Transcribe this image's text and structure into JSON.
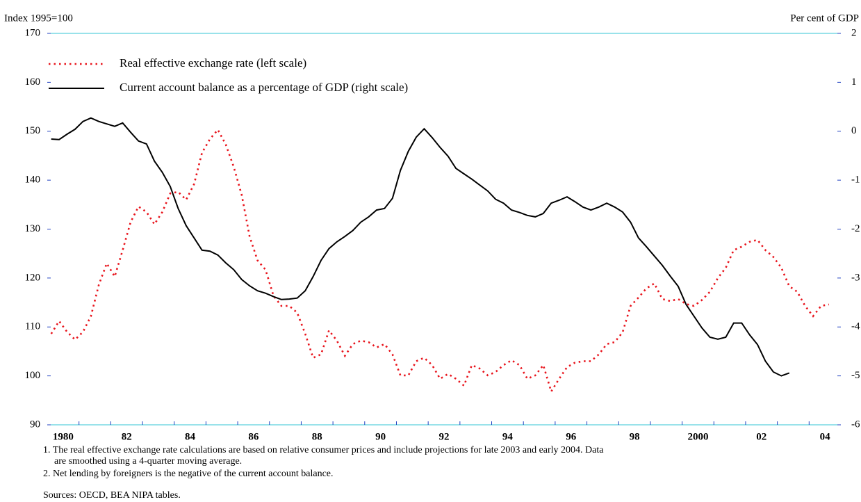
{
  "chart_data": {
    "type": "line",
    "ylabel": "Index 1995=100",
    "y2label": "Per cent of GDP",
    "x": [
      1980.125,
      1980.375,
      1980.625,
      1980.875,
      1981.125,
      1981.375,
      1981.625,
      1981.875,
      1982.125,
      1982.375,
      1982.625,
      1982.875,
      1983.125,
      1983.375,
      1983.625,
      1983.875,
      1984.125,
      1984.375,
      1984.625,
      1984.875,
      1985.125,
      1985.375,
      1985.625,
      1985.875,
      1986.125,
      1986.375,
      1986.625,
      1986.875,
      1987.125,
      1987.375,
      1987.625,
      1987.875,
      1988.125,
      1988.375,
      1988.625,
      1988.875,
      1989.125,
      1989.375,
      1989.625,
      1989.875,
      1990.125,
      1990.375,
      1990.625,
      1990.875,
      1991.125,
      1991.375,
      1991.625,
      1991.875,
      1992.125,
      1992.375,
      1992.625,
      1992.875,
      1993.125,
      1993.375,
      1993.625,
      1993.875,
      1994.125,
      1994.375,
      1994.625,
      1994.875,
      1995.125,
      1995.375,
      1995.625,
      1995.875,
      1996.125,
      1996.375,
      1996.625,
      1996.875,
      1997.125,
      1997.375,
      1997.625,
      1997.875,
      1998.125,
      1998.375,
      1998.625,
      1998.875,
      1999.125,
      1999.375,
      1999.625,
      1999.875,
      2000.125,
      2000.375,
      2000.625,
      2000.875,
      2001.125,
      2001.375,
      2001.625,
      2001.875,
      2002.125,
      2002.375,
      2002.625,
      2002.875,
      2003.125,
      2003.375,
      2003.625,
      2003.875,
      2004.125,
      2004.375,
      2004.625
    ],
    "series": [
      {
        "name": "Real effective exchange rate (left scale)",
        "color": "#e8141c",
        "style": "dotted",
        "values": [
          108.6,
          111.2,
          109,
          107.4,
          109,
          112.2,
          118.6,
          123,
          120.3,
          125.7,
          131.4,
          134.6,
          133.5,
          131,
          133.5,
          137.3,
          137.6,
          136,
          139.2,
          145.6,
          148.4,
          150.3,
          147.3,
          142.7,
          137,
          128.5,
          123.6,
          121.7,
          116.4,
          114.3,
          114.3,
          112.9,
          108.6,
          103.7,
          104.4,
          109.3,
          107.2,
          104.1,
          106.5,
          107.2,
          106.9,
          105.8,
          106.5,
          104.4,
          100.1,
          100.1,
          103,
          103.7,
          102.2,
          99.4,
          100.4,
          99.4,
          98,
          102.2,
          101.5,
          100.1,
          100.8,
          102.2,
          103.2,
          102.2,
          99.4,
          100.1,
          102.2,
          96.8,
          99.4,
          101.8,
          102.7,
          103,
          103,
          104.4,
          106.5,
          106.9,
          108.9,
          114.3,
          116,
          117.9,
          118.9,
          115.7,
          115.3,
          115.7,
          114.7,
          114.3,
          115.5,
          117.2,
          120,
          122.1,
          125.7,
          126.4,
          127.4,
          127.8,
          125.7,
          124.3,
          122.1,
          118.3,
          117.2,
          114.3,
          112.2,
          114.3,
          114.6
        ]
      },
      {
        "name": "Current account balance as a percentage of GDP (right scale)",
        "color": "#000000",
        "style": "solid",
        "axis": "y2",
        "values": [
          -0.16,
          -0.17,
          -0.06,
          0.04,
          0.2,
          0.27,
          0.2,
          0.15,
          0.1,
          0.17,
          -0.02,
          -0.2,
          -0.26,
          -0.61,
          -0.84,
          -1.13,
          -1.58,
          -1.93,
          -2.18,
          -2.43,
          -2.45,
          -2.53,
          -2.69,
          -2.83,
          -3.03,
          -3.16,
          -3.26,
          -3.31,
          -3.38,
          -3.44,
          -3.43,
          -3.41,
          -3.26,
          -2.97,
          -2.64,
          -2.4,
          -2.26,
          -2.15,
          -2.03,
          -1.86,
          -1.75,
          -1.61,
          -1.58,
          -1.37,
          -0.8,
          -0.41,
          -0.12,
          0.05,
          -0.13,
          -0.33,
          -0.51,
          -0.76,
          -0.87,
          -0.98,
          -1.1,
          -1.22,
          -1.39,
          -1.47,
          -1.61,
          -1.66,
          -1.72,
          -1.75,
          -1.68,
          -1.47,
          -1.41,
          -1.34,
          -1.44,
          -1.55,
          -1.61,
          -1.55,
          -1.47,
          -1.55,
          -1.65,
          -1.86,
          -2.18,
          -2.36,
          -2.55,
          -2.74,
          -2.96,
          -3.17,
          -3.54,
          -3.78,
          -4.02,
          -4.21,
          -4.25,
          -4.21,
          -3.92,
          -3.92,
          -4.16,
          -4.36,
          -4.7,
          -4.92,
          -5.0,
          -4.94,
          null,
          null,
          null,
          null,
          null
        ]
      }
    ],
    "xlim": [
      1980,
      2005
    ],
    "xticks": [
      {
        "value": 1980.5,
        "label": "1980"
      },
      {
        "value": 1982.5,
        "label": "82"
      },
      {
        "value": 1984.5,
        "label": "84"
      },
      {
        "value": 1986.5,
        "label": "86"
      },
      {
        "value": 1988.5,
        "label": "88"
      },
      {
        "value": 1990.5,
        "label": "90"
      },
      {
        "value": 1992.5,
        "label": "92"
      },
      {
        "value": 1994.5,
        "label": "94"
      },
      {
        "value": 1996.5,
        "label": "96"
      },
      {
        "value": 1998.5,
        "label": "98"
      },
      {
        "value": 2000.5,
        "label": "2000"
      },
      {
        "value": 2002.5,
        "label": "02"
      },
      {
        "value": 2004.5,
        "label": "04"
      }
    ],
    "xminor_ticks": [
      1981,
      1982,
      1983,
      1984,
      1985,
      1986,
      1987,
      1988,
      1989,
      1990,
      1991,
      1992,
      1993,
      1994,
      1995,
      1996,
      1997,
      1998,
      1999,
      2000,
      2001,
      2002,
      2003,
      2004
    ],
    "ylim": [
      90,
      170
    ],
    "yticks": [
      90,
      100,
      110,
      120,
      130,
      140,
      150,
      160,
      170
    ],
    "y2lim": [
      -6,
      2
    ],
    "y2ticks": [
      -6,
      -5,
      -4,
      -3,
      -2,
      -1,
      0,
      1,
      2
    ],
    "legend": "top-left",
    "notes": [
      "1. The real effective exchange rate calculations are based on relative consumer prices and include projections for late 2003 and early 2004. Data",
      "are smoothed using a 4-quarter moving average.",
      "2. Net lending by foreigners is the negative of the current account balance.",
      "Sources: OECD, BEA NIPA tables."
    ]
  }
}
